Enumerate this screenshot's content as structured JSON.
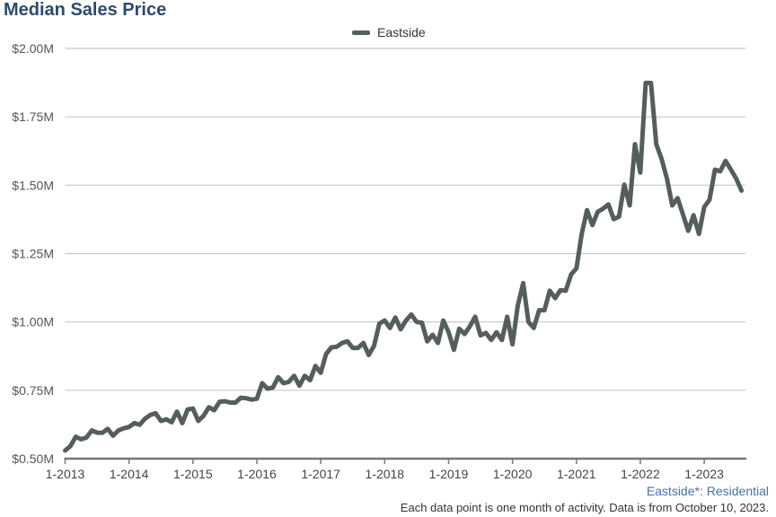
{
  "chart_data": {
    "type": "line",
    "title": "Median Sales Price",
    "legend": [
      "Eastside"
    ],
    "legend_position": "top-center",
    "xlabel": "",
    "ylabel": "",
    "x_start": "1-2013",
    "x_ticks": [
      "1-2013",
      "1-2014",
      "1-2015",
      "1-2016",
      "1-2017",
      "1-2018",
      "1-2019",
      "1-2020",
      "1-2021",
      "1-2022",
      "1-2023"
    ],
    "y_ticks": [
      0.5,
      0.75,
      1.0,
      1.25,
      1.5,
      1.75,
      2.0
    ],
    "y_tick_labels": [
      "$0.50M",
      "$0.75M",
      "$1.00M",
      "$1.25M",
      "$1.50M",
      "$1.75M",
      "$2.00M"
    ],
    "ylim": [
      0.5,
      2.0
    ],
    "grid": true,
    "series": [
      {
        "name": "Eastside",
        "color": "#555e5c",
        "values": [
          0.53,
          0.546,
          0.58,
          0.571,
          0.577,
          0.603,
          0.595,
          0.595,
          0.609,
          0.584,
          0.603,
          0.611,
          0.616,
          0.63,
          0.624,
          0.646,
          0.66,
          0.666,
          0.638,
          0.644,
          0.633,
          0.672,
          0.63,
          0.68,
          0.683,
          0.638,
          0.657,
          0.688,
          0.677,
          0.708,
          0.71,
          0.705,
          0.705,
          0.723,
          0.721,
          0.716,
          0.719,
          0.776,
          0.756,
          0.76,
          0.798,
          0.776,
          0.781,
          0.803,
          0.767,
          0.803,
          0.787,
          0.839,
          0.814,
          0.883,
          0.907,
          0.909,
          0.923,
          0.929,
          0.905,
          0.905,
          0.923,
          0.879,
          0.912,
          0.994,
          1.005,
          0.978,
          1.016,
          0.973,
          1.005,
          1.027,
          1.0,
          0.997,
          0.929,
          0.953,
          0.923,
          1.005,
          0.962,
          0.898,
          0.975,
          0.956,
          0.984,
          1.019,
          0.951,
          0.96,
          0.934,
          0.962,
          0.934,
          1.019,
          0.918,
          1.06,
          1.142,
          1.0,
          0.978,
          1.043,
          1.043,
          1.114,
          1.087,
          1.116,
          1.114,
          1.174,
          1.196,
          1.322,
          1.409,
          1.354,
          1.403,
          1.414,
          1.43,
          1.376,
          1.385,
          1.502,
          1.426,
          1.65,
          1.546,
          1.874,
          1.874,
          1.65,
          1.595,
          1.524,
          1.426,
          1.453,
          1.393,
          1.333,
          1.39,
          1.322,
          1.42,
          1.447,
          1.557,
          1.551,
          1.589,
          1.557,
          1.524,
          1.48
        ]
      }
    ],
    "subtitle": "Eastside*: Residential",
    "note": "Each data point is one month of activity. Data is from October 10, 2023."
  }
}
